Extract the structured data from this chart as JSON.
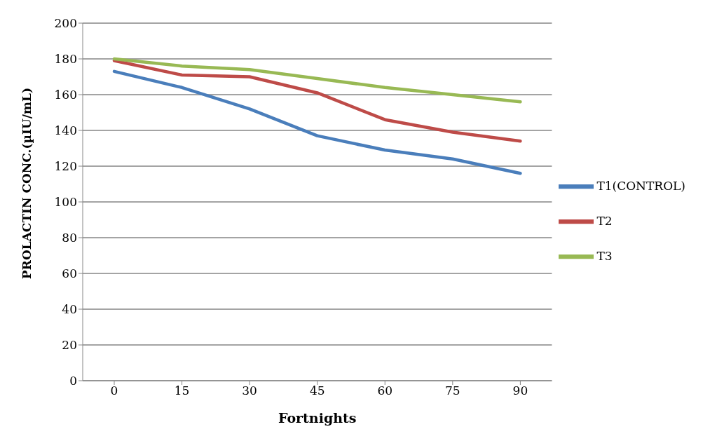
{
  "chart_data": {
    "type": "line",
    "xlabel": "Fortnights",
    "ylabel": "PROLACTIN CONC.(µIU/mL)",
    "categories": [
      "0",
      "15",
      "30",
      "45",
      "60",
      "75",
      "90"
    ],
    "series": [
      {
        "name": "T1(CONTROL)",
        "color": "#4a7ebb",
        "values": [
          173,
          164,
          152,
          137,
          129,
          124,
          116
        ]
      },
      {
        "name": "T2",
        "color": "#be4b48",
        "values": [
          179,
          171,
          170,
          161,
          146,
          139,
          134
        ]
      },
      {
        "name": "T3",
        "color": "#98b954",
        "values": [
          180,
          176,
          174,
          169,
          164,
          160,
          156
        ]
      }
    ],
    "ylim": [
      0,
      200
    ],
    "yticks": [
      0,
      20,
      40,
      60,
      80,
      100,
      120,
      140,
      160,
      180,
      200
    ],
    "grid": "y",
    "legend": "right",
    "marker": "none",
    "line_style": "solid"
  }
}
